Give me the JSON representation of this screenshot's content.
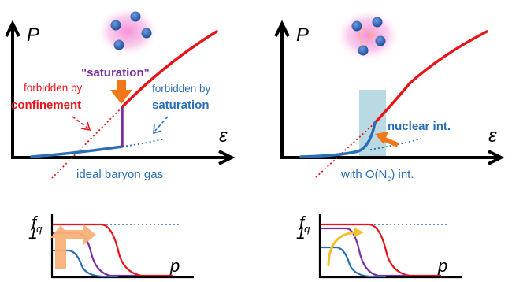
{
  "left_panel": {
    "y_axis_label": "P",
    "x_axis_label": "ε",
    "saturation_label": "\"saturation\"",
    "forbidden_confinement_line1": "forbidden by",
    "forbidden_confinement_line2": "confinement",
    "forbidden_saturation_line1": "forbidden by",
    "forbidden_saturation_line2": "saturation",
    "caption": "ideal baryon gas"
  },
  "right_panel": {
    "y_axis_label": "P",
    "x_axis_label": "ε",
    "nuclear_label": "nuclear int.",
    "caption_main": "with O(N",
    "caption_sub": "c",
    "caption_end": ") int."
  },
  "bottom_left": {
    "y_axis_label": "f",
    "y_axis_sub": "q",
    "x_axis_label": "p",
    "one_label": "1"
  },
  "bottom_right": {
    "y_axis_label": "f",
    "y_axis_sub": "q",
    "x_axis_label": "p",
    "one_label": "1"
  },
  "colors": {
    "red": "#e8141a",
    "blue": "#2a6fb5",
    "purple": "#7a2fa0",
    "orange": "#f07818",
    "orange_light": "#f7b27a",
    "yellow": "#f2c12e",
    "teal": "#aed4de",
    "pink_glow": "#f59ad8",
    "ball": "#2f63b0"
  }
}
